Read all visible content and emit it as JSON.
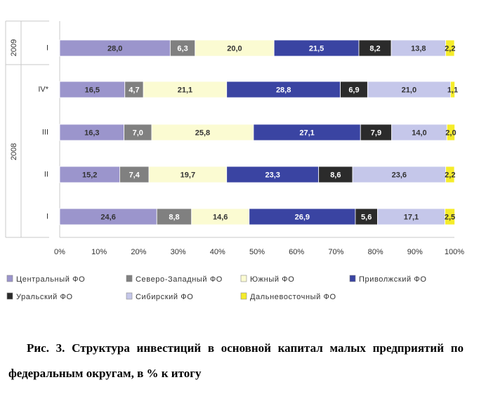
{
  "chart_data": {
    "type": "bar",
    "orientation": "horizontal",
    "stacked": true,
    "groups": [
      {
        "label": "2009",
        "categories": [
          "I"
        ]
      },
      {
        "label": "2008",
        "categories": [
          "IV*",
          "III",
          "II",
          "I"
        ]
      }
    ],
    "categories": [
      "I",
      "IV*",
      "III",
      "II",
      "I"
    ],
    "series": [
      {
        "name": "Центральный ФО",
        "color": "#9b95cc",
        "values": [
          28.0,
          16.5,
          16.3,
          15.2,
          24.6
        ],
        "labels": [
          "28,0",
          "16,5",
          "16,3",
          "15,2",
          "24,6"
        ]
      },
      {
        "name": "Северо-Западный ФО",
        "color": "#808080",
        "values": [
          6.3,
          4.7,
          7.0,
          7.4,
          8.8
        ],
        "labels": [
          "6,3",
          "4,7",
          "7,0",
          "7,4",
          "8,8"
        ]
      },
      {
        "name": "Южный ФО",
        "color": "#fbfbd2",
        "values": [
          20.0,
          21.1,
          25.8,
          19.7,
          14.6
        ],
        "labels": [
          "20,0",
          "21,1",
          "25,8",
          "19,7",
          "14,6"
        ]
      },
      {
        "name": "Приволжский ФО",
        "color": "#3a44a2",
        "values": [
          21.5,
          28.8,
          27.1,
          23.3,
          26.9
        ],
        "labels": [
          "21,5",
          "28,8",
          "27,1",
          "23,3",
          "26,9"
        ]
      },
      {
        "name": "Уральский ФО",
        "color": "#2b2b2b",
        "values": [
          8.2,
          6.9,
          7.9,
          8.6,
          5.6
        ],
        "labels": [
          "8,2",
          "6,9",
          "7,9",
          "8,6",
          "5,6"
        ]
      },
      {
        "name": "Сибирский ФО",
        "color": "#c5c7ea",
        "values": [
          13.8,
          21.0,
          14.0,
          23.6,
          17.1
        ],
        "labels": [
          "13,8",
          "21,0",
          "14,0",
          "23,6",
          "17,1"
        ]
      },
      {
        "name": "Дальневосточный ФО",
        "color": "#f5ec2a",
        "values": [
          2.2,
          1.1,
          2.0,
          2.2,
          2.5
        ],
        "labels": [
          "2,2",
          "1,1",
          "2,0",
          "2,2",
          "2,5"
        ]
      }
    ],
    "x_ticks": [
      "0%",
      "10%",
      "20%",
      "30%",
      "40%",
      "50%",
      "60%",
      "70%",
      "80%",
      "90%",
      "100%"
    ],
    "xlim": [
      0,
      100
    ],
    "grid": false,
    "legend_position": "bottom"
  },
  "caption": "Рис. 3. Структура инвестиций в основной капитал малых предприятий по федеральным округам, в % к итогу"
}
